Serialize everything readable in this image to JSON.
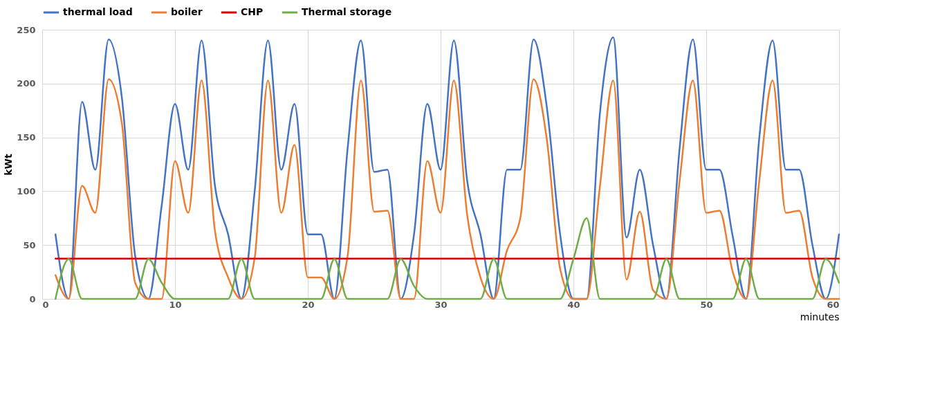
{
  "chart_data": {
    "type": "line",
    "xlabel": "minutes",
    "ylabel": "kWt",
    "x": [
      1,
      2,
      3,
      4,
      5,
      6,
      7,
      8,
      9,
      10,
      11,
      12,
      13,
      14,
      15,
      16,
      17,
      18,
      19,
      20,
      21,
      22,
      23,
      24,
      25,
      26,
      27,
      28,
      29,
      30,
      31,
      32,
      33,
      34,
      35,
      36,
      37,
      38,
      39,
      40,
      41,
      42,
      43,
      44,
      45,
      46,
      47,
      48,
      49,
      50,
      51,
      52,
      53,
      54,
      55,
      56,
      57,
      58,
      59,
      60
    ],
    "series": [
      {
        "name": "thermal load",
        "color": "#4472c4",
        "values": [
          60,
          0,
          183,
          120,
          241,
          187,
          40,
          0,
          87,
          181,
          120,
          240,
          106,
          60,
          0,
          100,
          240,
          120,
          181,
          60,
          60,
          0,
          140,
          240,
          118,
          120,
          0,
          60,
          181,
          120,
          240,
          110,
          60,
          0,
          120,
          120,
          241,
          178,
          60,
          0,
          0,
          173,
          243,
          57,
          120,
          50,
          0,
          140,
          241,
          120,
          120,
          58,
          0,
          150,
          240,
          120,
          120,
          50,
          0,
          60
        ]
      },
      {
        "name": "boiler",
        "color": "#ed7d31",
        "values": [
          22,
          0,
          105,
          80,
          204,
          163,
          15,
          0,
          0,
          128,
          80,
          203,
          64,
          20,
          0,
          38,
          203,
          80,
          143,
          20,
          20,
          0,
          40,
          203,
          81,
          82,
          0,
          0,
          128,
          80,
          203,
          78,
          20,
          0,
          45,
          75,
          204,
          148,
          28,
          0,
          0,
          105,
          203,
          18,
          81,
          8,
          0,
          110,
          203,
          80,
          82,
          25,
          0,
          110,
          203,
          80,
          82,
          20,
          0,
          0
        ]
      },
      {
        "name": "CHP",
        "color": "#e00000",
        "values": [
          37.5,
          37.5,
          37.5,
          37.5,
          37.5,
          37.5,
          37.5,
          37.5,
          37.5,
          37.5,
          37.5,
          37.5,
          37.5,
          37.5,
          37.5,
          37.5,
          37.5,
          37.5,
          37.5,
          37.5,
          37.5,
          37.5,
          37.5,
          37.5,
          37.5,
          37.5,
          37.5,
          37.5,
          37.5,
          37.5,
          37.5,
          37.5,
          37.5,
          37.5,
          37.5,
          37.5,
          37.5,
          37.5,
          37.5,
          37.5,
          37.5,
          37.5,
          37.5,
          37.5,
          37.5,
          37.5,
          37.5,
          37.5,
          37.5,
          37.5,
          37.5,
          37.5,
          37.5,
          37.5,
          37.5,
          37.5,
          37.5,
          37.5,
          37.5,
          37.5
        ]
      },
      {
        "name": "Thermal storage",
        "color": "#70ad47",
        "values": [
          0,
          37,
          0,
          0,
          0,
          0,
          0,
          37,
          15,
          0,
          0,
          0,
          0,
          0,
          37,
          0,
          0,
          0,
          0,
          0,
          0,
          37,
          0,
          0,
          0,
          0,
          37,
          12,
          0,
          0,
          0,
          0,
          0,
          37,
          0,
          0,
          0,
          0,
          0,
          37,
          75,
          0,
          0,
          0,
          0,
          0,
          37,
          0,
          0,
          0,
          0,
          0,
          37,
          0,
          0,
          0,
          0,
          0,
          37,
          15
        ]
      }
    ],
    "xlim": [
      0,
      60
    ],
    "xticks": [
      0,
      10,
      20,
      30,
      40,
      50,
      60
    ],
    "ylim": [
      0,
      250
    ],
    "yticks": [
      0,
      50,
      100,
      150,
      200,
      250
    ],
    "grid": true,
    "legend": "top",
    "marker": "none",
    "line_style": "solid"
  }
}
